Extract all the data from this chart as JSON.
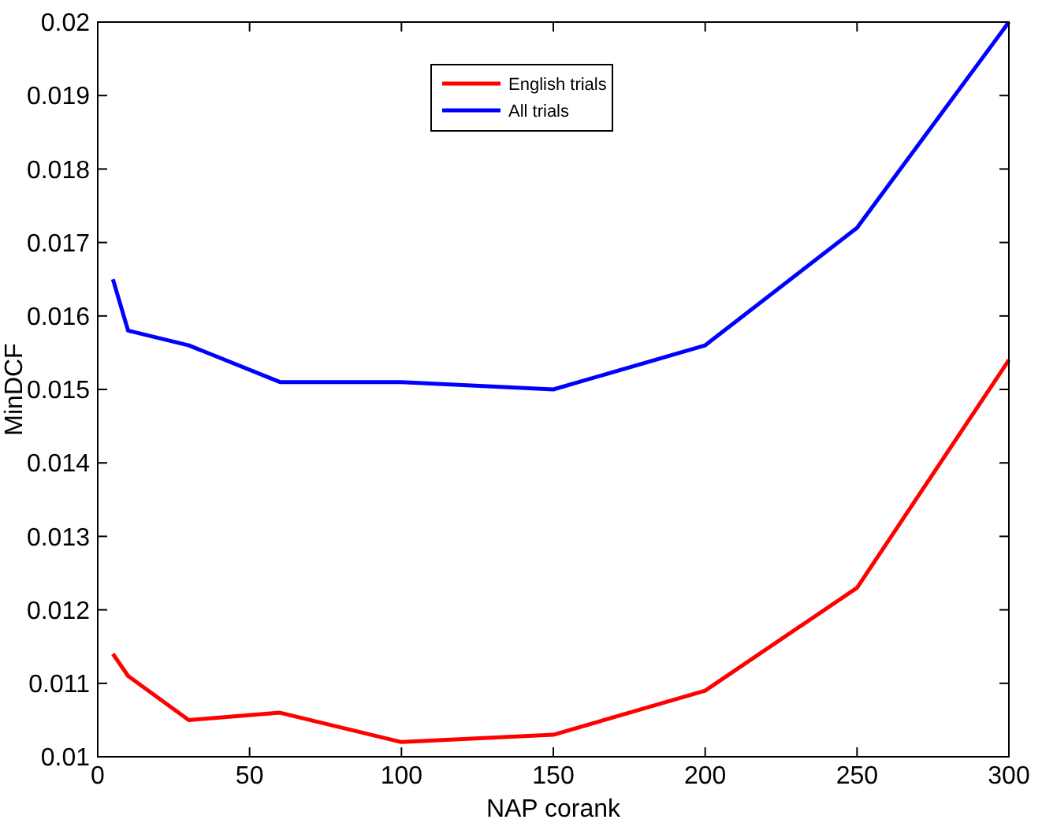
{
  "chart_data": {
    "type": "line",
    "xlabel": "NAP corank",
    "ylabel": "MinDCF",
    "x": [
      5,
      10,
      30,
      60,
      100,
      150,
      200,
      250,
      300
    ],
    "series": [
      {
        "name": "English trials",
        "color": "#ff0000",
        "values": [
          0.0114,
          0.0111,
          0.0105,
          0.0106,
          0.0102,
          0.0103,
          0.0109,
          0.0123,
          0.0154
        ]
      },
      {
        "name": "All trials",
        "color": "#0000ff",
        "values": [
          0.0165,
          0.0158,
          0.0156,
          0.0151,
          0.0151,
          0.015,
          0.0156,
          0.0172,
          0.02
        ]
      }
    ],
    "xlim": [
      0,
      300
    ],
    "xticks": [
      0,
      50,
      100,
      150,
      200,
      250,
      300
    ],
    "ylim": [
      0.01,
      0.02
    ],
    "yticks": [
      0.01,
      0.011,
      0.012,
      0.013,
      0.014,
      0.015,
      0.016,
      0.017,
      0.018,
      0.019,
      0.02
    ],
    "grid": false,
    "legend": "top",
    "line_style": "solid"
  }
}
